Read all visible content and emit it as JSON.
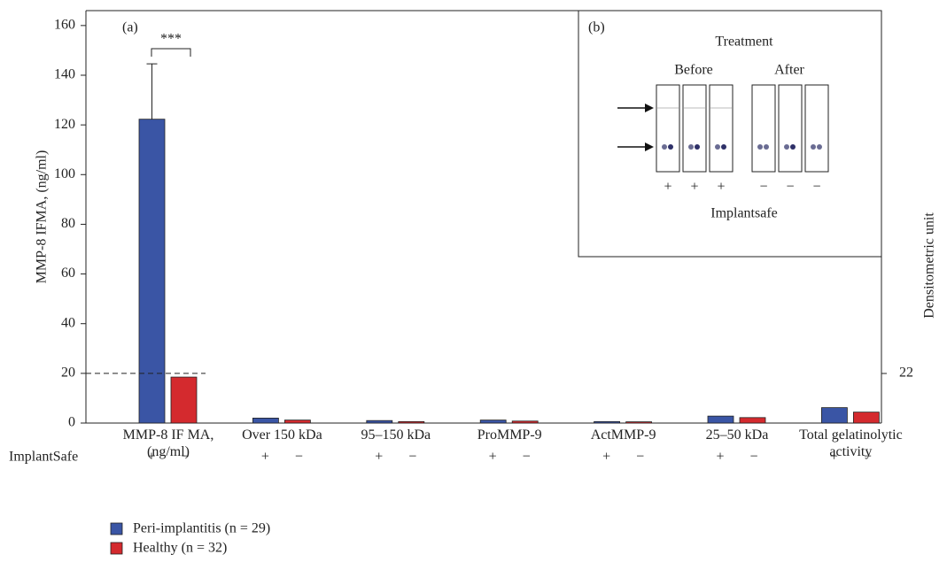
{
  "chart_data": {
    "type": "bar",
    "panel_label": "(a)",
    "y_label": "MMP-8 IFMA, (ng/ml)",
    "y2_label": "Densitometric unit",
    "categories": [
      "MMP-8 IF MA, (ng/ml)",
      "Over 150 kDa",
      "95–150 kDa",
      "ProMMP-9",
      "ActMMP-9",
      "25–50 kDa",
      "Total gelatinolytic activity"
    ],
    "series": [
      {
        "name": "Peri-implantitis (n = 29)",
        "color": "#3a55a5",
        "values": [
          122.3,
          2.0,
          1.0,
          1.2,
          0.6,
          2.8,
          6.2
        ],
        "errors": [
          22.3,
          null,
          null,
          null,
          null,
          null,
          null
        ]
      },
      {
        "name": "Healthy (n = 32)",
        "color": "#d42a2e",
        "values": [
          18.5,
          1.2,
          0.6,
          0.8,
          0.5,
          2.2,
          4.4
        ]
      }
    ],
    "ylim": [
      0,
      166
    ],
    "yticks": [
      0,
      20,
      40,
      60,
      80,
      100,
      120,
      140,
      160
    ],
    "y2lim": [
      0,
      183
    ],
    "y2ticks": [
      22
    ],
    "reference_line": 20,
    "significance": "***",
    "row_label": "ImplantSafe",
    "row_signs": [
      "+",
      "−"
    ],
    "legend": "bottom-left",
    "inset": {
      "label": "(b)",
      "title": "Treatment",
      "groups": [
        "Before",
        "After"
      ],
      "signs": [
        [
          "+",
          "+",
          "+"
        ],
        [
          "−",
          "−",
          "−"
        ]
      ],
      "caption": "Implantsafe"
    }
  }
}
